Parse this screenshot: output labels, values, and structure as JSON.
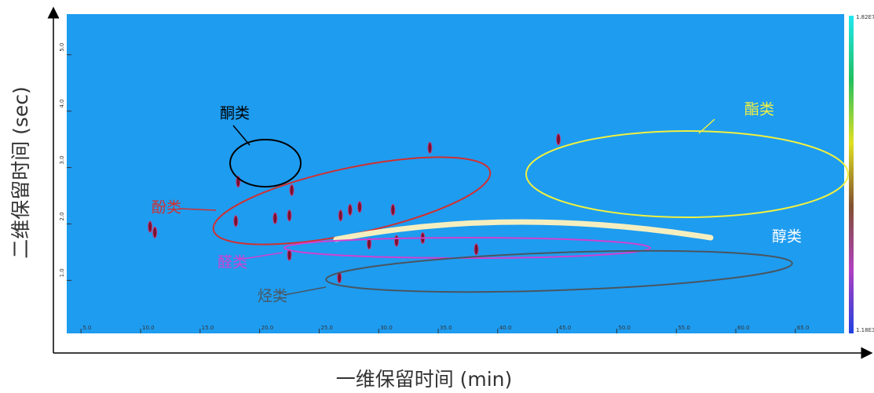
{
  "chart_data": {
    "type": "scatter",
    "x_label": "一维保留时间 (min)",
    "y_label": "二维保留时间 (sec)",
    "xlim": [
      3.8,
      69.1
    ],
    "ylim": [
      0.06,
      5.72
    ],
    "xticks": [
      {
        "value": 5,
        "label": "5.0"
      },
      {
        "value": 10,
        "label": "10.0"
      },
      {
        "value": 15,
        "label": "15.0"
      },
      {
        "value": 20,
        "label": "20.0"
      },
      {
        "value": 25,
        "label": "25.0"
      },
      {
        "value": 30,
        "label": "30.0"
      },
      {
        "value": 35,
        "label": "35.0"
      },
      {
        "value": 40,
        "label": "40.0"
      },
      {
        "value": 45,
        "label": "45.0"
      },
      {
        "value": 50,
        "label": "50.0"
      },
      {
        "value": 55,
        "label": "55.0"
      },
      {
        "value": 60,
        "label": "60.0"
      },
      {
        "value": 65,
        "label": "65.0"
      }
    ],
    "yticks": [
      {
        "value": 1,
        "label": "1.0"
      },
      {
        "value": 2,
        "label": "2.0"
      },
      {
        "value": 3,
        "label": "3.0"
      },
      {
        "value": 4,
        "label": "4.0"
      },
      {
        "value": 5,
        "label": "5.0"
      }
    ],
    "background_color": "#1e9cf0",
    "colorbar": {
      "labels": [
        "1.82E7",
        "1.18E3"
      ],
      "colors": [
        "#20e8f0",
        "#20c060",
        "#e0e020",
        "#805030",
        "#b040c0",
        "#2040e0"
      ]
    },
    "series": [
      {
        "color": "#7a1030",
        "x": [
          10.8,
          11.2,
          18.2,
          18.0,
          22.7,
          22.5,
          21.3,
          26.8,
          27.6,
          28.4,
          31.2,
          34.3,
          38.2,
          33.7,
          22.5,
          26.7,
          29.2,
          45.1,
          31.5
        ],
        "values": [
          1.95,
          1.85,
          2.75,
          2.05,
          2.6,
          2.15,
          2.1,
          2.15,
          2.25,
          2.3,
          2.25,
          3.35,
          1.55,
          1.75,
          1.45,
          1.05,
          1.65,
          3.5,
          1.7
        ]
      }
    ],
    "annotations": [
      {
        "text": "酮类",
        "color": "#000000"
      },
      {
        "text": "酯类",
        "color": "#f0f040"
      },
      {
        "text": "酚类",
        "color": "#d03030"
      },
      {
        "text": "醇类",
        "color": "#ffffff"
      },
      {
        "text": "醛类",
        "color": "#d040d0"
      },
      {
        "text": "烃类",
        "color": "#4a5560"
      }
    ]
  }
}
